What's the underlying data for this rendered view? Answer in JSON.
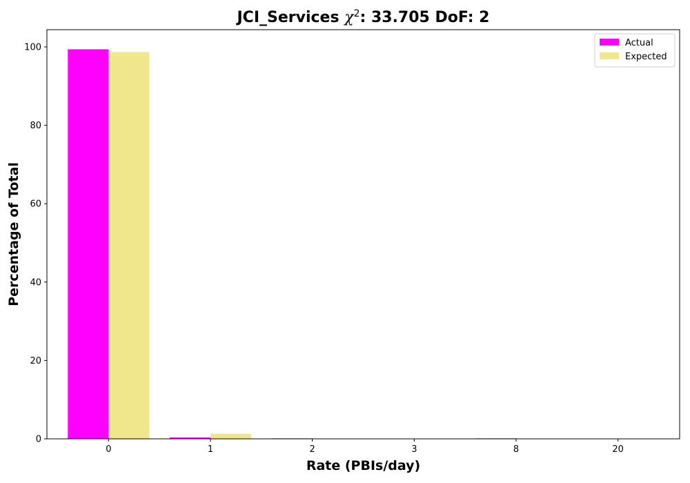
{
  "chart_data": {
    "type": "bar",
    "title": {
      "prefix": "JCI_Services ",
      "chi_symbol": "χ",
      "chi_exponent": "2",
      "suffix": ": 33.705 DoF: 2"
    },
    "xlabel": "Rate (PBIs/day)",
    "ylabel": "Percentage of Total",
    "categories": [
      "0",
      "1",
      "2",
      "3",
      "8",
      "20"
    ],
    "series": [
      {
        "name": "Actual",
        "color": "#ff00ff",
        "values": [
          99.4,
          0.35,
          0.12,
          0.0,
          0.12,
          0.0
        ]
      },
      {
        "name": "Expected",
        "color": "#f0e68c",
        "values": [
          98.7,
          1.3,
          0.0,
          0.0,
          0.0,
          0.0
        ]
      }
    ],
    "ylim": [
      0,
      104.4
    ],
    "yticks": [
      0,
      20,
      40,
      60,
      80,
      100
    ],
    "grid": false,
    "legend_position": "top-right"
  }
}
